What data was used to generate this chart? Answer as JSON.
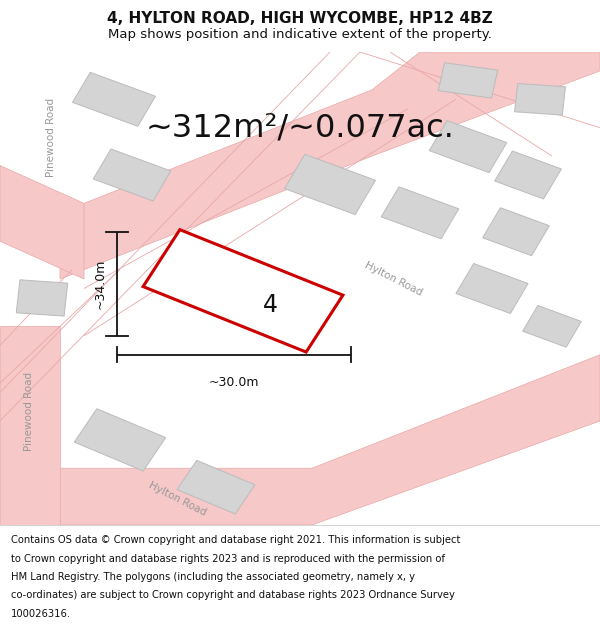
{
  "title": "4, HYLTON ROAD, HIGH WYCOMBE, HP12 4BZ",
  "subtitle": "Map shows position and indicative extent of the property.",
  "area_text": "~312m²/~0.077ac.",
  "property_number": "4",
  "dim_horizontal": "~30.0m",
  "dim_vertical": "~34.0m",
  "bg_color": "#ffffff",
  "road_fill": "#f7c8c8",
  "road_line": "#e8a8a8",
  "building_fill": "#d4d4d4",
  "building_edge": "#bbbbbb",
  "plot_fill": "#ffffff",
  "plot_edge": "#cc0000",
  "plot_lw": 2.2,
  "dim_color": "#111111",
  "text_color": "#111111",
  "road_label_color": "#999999",
  "title_fontsize": 11,
  "subtitle_fontsize": 9.5,
  "area_fontsize": 23,
  "dim_fontsize": 9,
  "road_label_fontsize": 7.5,
  "footer_fontsize": 7.2,
  "footer_lines": [
    "Contains OS data © Crown copyright and database right 2021. This information is subject",
    "to Crown copyright and database rights 2023 and is reproduced with the permission of",
    "HM Land Registry. The polygons (including the associated geometry, namely x, y",
    "co-ordinates) are subject to Crown copyright and database rights 2023 Ordnance Survey",
    "100026316."
  ]
}
